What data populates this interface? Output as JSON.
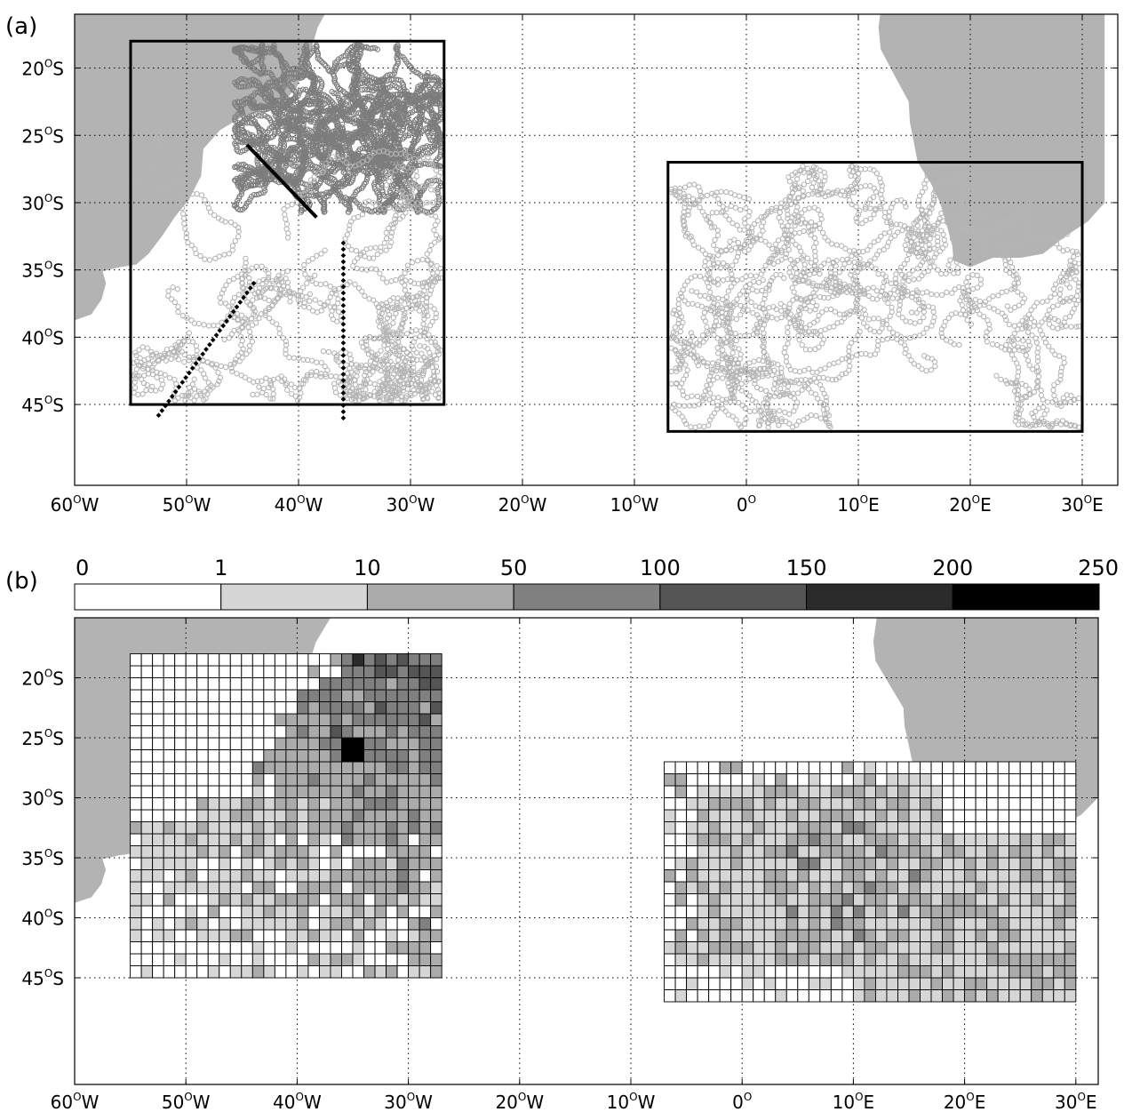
{
  "panel_a": {
    "label": "(a)",
    "x_ticks": [
      {
        "lon": -60,
        "txt": "60",
        "suf": "W"
      },
      {
        "lon": -50,
        "txt": "50",
        "suf": "W"
      },
      {
        "lon": -40,
        "txt": "40",
        "suf": "W"
      },
      {
        "lon": -30,
        "txt": "30",
        "suf": "W"
      },
      {
        "lon": -20,
        "txt": "20",
        "suf": "W"
      },
      {
        "lon": -10,
        "txt": "10",
        "suf": "W"
      },
      {
        "lon": 0,
        "txt": "0",
        "suf": ""
      },
      {
        "lon": 10,
        "txt": "10",
        "suf": "E"
      },
      {
        "lon": 20,
        "txt": "20",
        "suf": "E"
      },
      {
        "lon": 30,
        "txt": "30",
        "suf": "E"
      }
    ],
    "y_ticks": [
      {
        "lat": -20,
        "txt": "20",
        "suf": "S"
      },
      {
        "lat": -25,
        "txt": "25",
        "suf": "S"
      },
      {
        "lat": -30,
        "txt": "30",
        "suf": "S"
      },
      {
        "lat": -35,
        "txt": "35",
        "suf": "S"
      },
      {
        "lat": -40,
        "txt": "40",
        "suf": "S"
      },
      {
        "lat": -45,
        "txt": "45",
        "suf": "S"
      }
    ],
    "boxes": [
      {
        "name": "west-box",
        "lon": [
          -55,
          -27
        ],
        "lat": [
          -45,
          -18
        ]
      },
      {
        "name": "east-box",
        "lon": [
          -7,
          30
        ],
        "lat": [
          -47,
          -27
        ]
      }
    ],
    "sections": [
      {
        "name": "section-brazil-current",
        "from": [
          -44.5,
          -25.8
        ],
        "to": [
          -38.5,
          -31
        ]
      },
      {
        "name": "section-diagonal",
        "from": [
          -52.5,
          -45.8
        ],
        "to": [
          -44,
          -36
        ]
      },
      {
        "name": "section-meridional",
        "from": [
          -36,
          -33
        ],
        "to": [
          -36,
          -46
        ]
      }
    ]
  },
  "panel_b": {
    "label": "(b)",
    "colorbar": {
      "labels": [
        "0",
        "1",
        "10",
        "50",
        "100",
        "150",
        "200",
        "250"
      ],
      "colors": [
        "#ffffff",
        "#d6d6d6",
        "#ababab",
        "#808080",
        "#555555",
        "#2b2b2b",
        "#000000"
      ]
    },
    "x_ticks": [
      {
        "lon": -60,
        "txt": "60",
        "suf": "W"
      },
      {
        "lon": -50,
        "txt": "50",
        "suf": "W"
      },
      {
        "lon": -40,
        "txt": "40",
        "suf": "W"
      },
      {
        "lon": -30,
        "txt": "30",
        "suf": "W"
      },
      {
        "lon": -20,
        "txt": "20",
        "suf": "W"
      },
      {
        "lon": -10,
        "txt": "10",
        "suf": "W"
      },
      {
        "lon": 0,
        "txt": "0",
        "suf": ""
      },
      {
        "lon": 10,
        "txt": "10",
        "suf": "E"
      },
      {
        "lon": 20,
        "txt": "20",
        "suf": "E"
      },
      {
        "lon": 30,
        "txt": "30",
        "suf": "E"
      }
    ],
    "y_ticks": [
      {
        "lat": -20,
        "txt": "20",
        "suf": "S"
      },
      {
        "lat": -25,
        "txt": "25",
        "suf": "S"
      },
      {
        "lat": -30,
        "txt": "30",
        "suf": "S"
      },
      {
        "lat": -35,
        "txt": "35",
        "suf": "S"
      },
      {
        "lat": -40,
        "txt": "40",
        "suf": "S"
      },
      {
        "lat": -45,
        "txt": "45",
        "suf": "S"
      }
    ],
    "grids": [
      {
        "name": "west-grid",
        "lon": [
          -55,
          -27
        ],
        "lat": [
          -45,
          -18
        ],
        "step": 1
      },
      {
        "name": "east-grid",
        "lon": [
          -7,
          30
        ],
        "lat": [
          -47,
          -27
        ],
        "step": 1
      }
    ]
  },
  "colors": {
    "land": "#b3b3b3",
    "track_dark": "#7d7d7d",
    "track_light": "#b5b5b5",
    "section": "#000000"
  }
}
